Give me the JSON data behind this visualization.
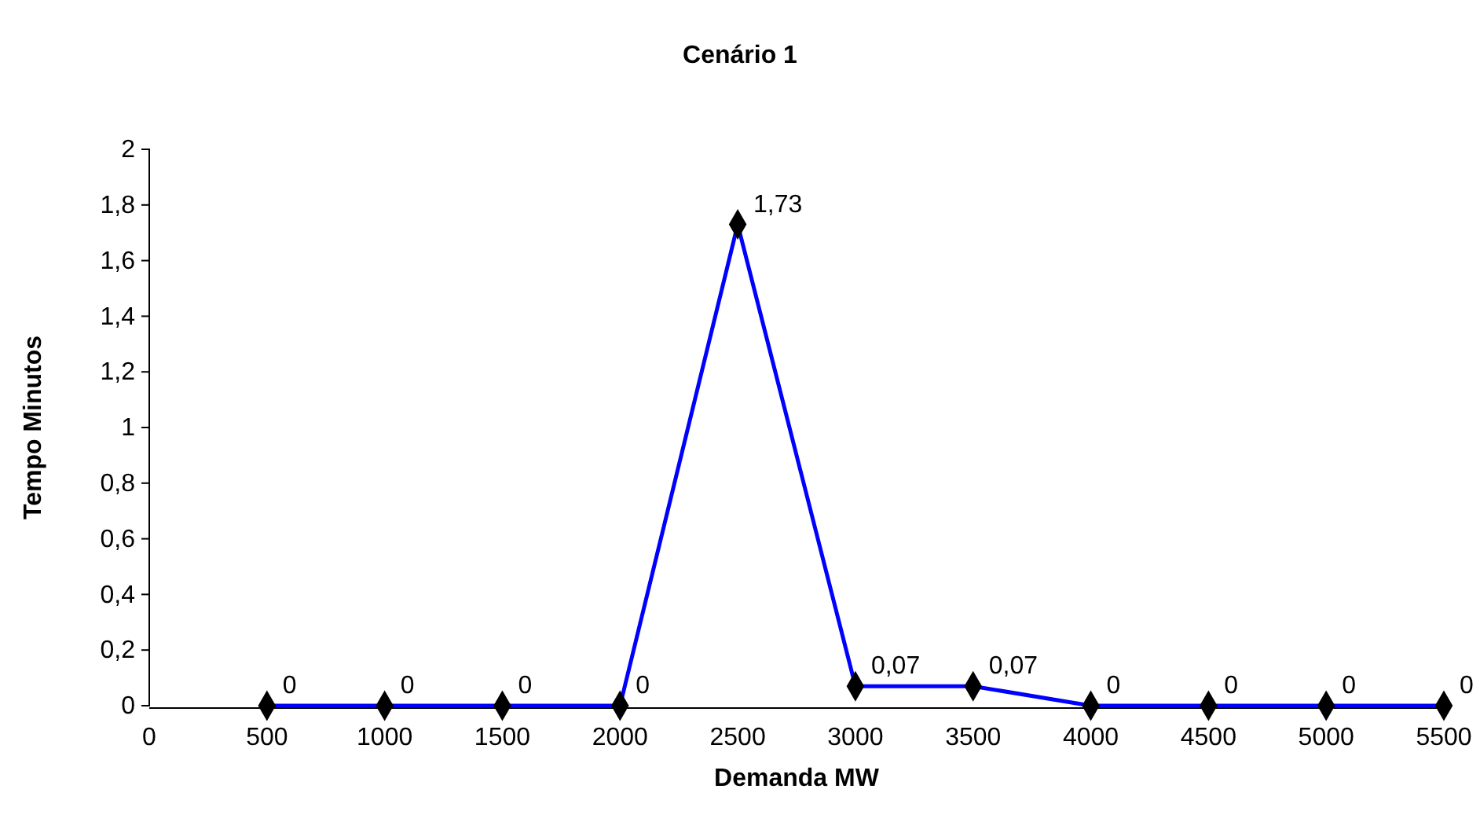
{
  "chart_data": {
    "type": "line",
    "title": "Cenário 1",
    "xlabel": "Demanda MW",
    "ylabel": "Tempo Minutos",
    "x": [
      500,
      1000,
      1500,
      2000,
      2500,
      3000,
      3500,
      4000,
      4500,
      5000,
      5500
    ],
    "series": [
      {
        "color": "#0000ff",
        "values": [
          0,
          0,
          0,
          0,
          1.73,
          0.07,
          0.07,
          0,
          0,
          0,
          0
        ],
        "value_labels": [
          "0",
          "0",
          "0",
          "0",
          "1,73",
          "0,07",
          "0,07",
          "0",
          "0",
          "0",
          "0"
        ]
      }
    ],
    "xlim": [
      0,
      5500
    ],
    "xticks": [
      0,
      500,
      1000,
      1500,
      2000,
      2500,
      3000,
      3500,
      4000,
      4500,
      5000,
      5500
    ],
    "ylim": [
      0,
      2
    ],
    "yticks": [
      0,
      {
        "value": 0.2,
        "label": "0,2"
      },
      {
        "value": 0.4,
        "label": "0,4"
      },
      {
        "value": 0.6,
        "label": "0,6"
      },
      {
        "value": 0.8,
        "label": "0,8"
      },
      1,
      {
        "value": 1.2,
        "label": "1,2"
      },
      {
        "value": 1.4,
        "label": "1,4"
      },
      {
        "value": 1.6,
        "label": "1,6"
      },
      {
        "value": 1.8,
        "label": "1,8"
      },
      2
    ],
    "grid": false,
    "marker": "diamond",
    "line_style": "solid"
  }
}
